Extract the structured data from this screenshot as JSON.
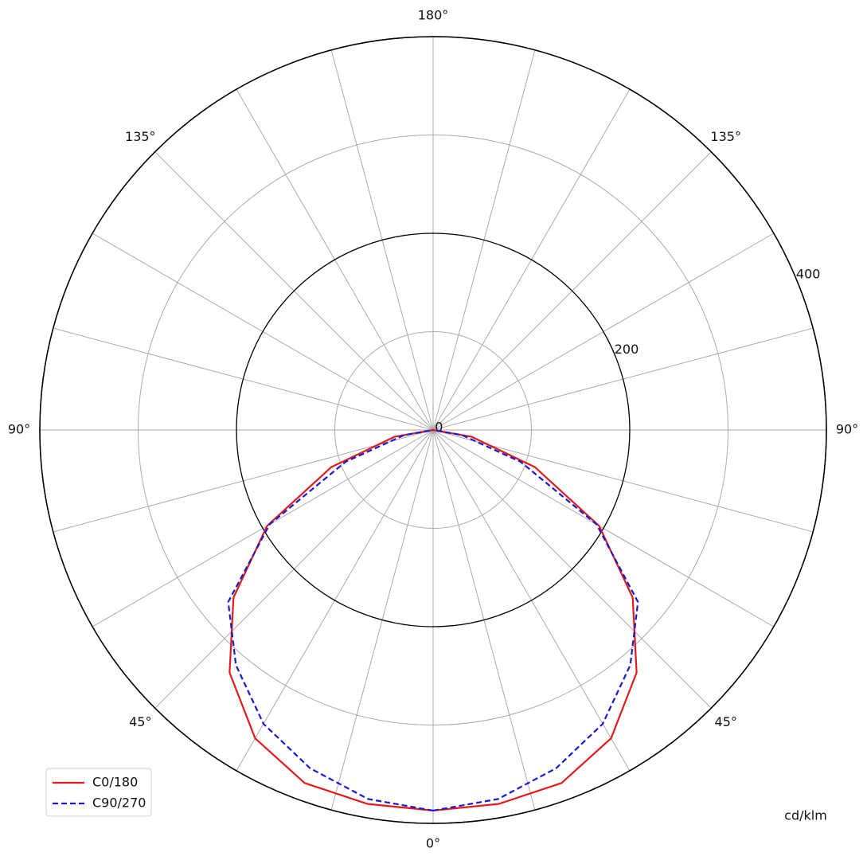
{
  "chart_data": {
    "type": "polar",
    "x": [
      0,
      10,
      20,
      30,
      40,
      50,
      60,
      70,
      80,
      90
    ],
    "series": [
      {
        "name": "C0/180",
        "color": "#e31a1c",
        "dash": "solid",
        "values": [
          387,
          386,
          382,
          362,
          322,
          265,
          195,
          110,
          40,
          0
        ]
      },
      {
        "name": "C90/270",
        "color": "#1a1acc",
        "dash": "dashed",
        "values": [
          387,
          381,
          366,
          345,
          312,
          272,
          192,
          95,
          30,
          0
        ]
      }
    ],
    "rlim": [
      0,
      400
    ],
    "rticks": [
      0,
      200,
      400
    ],
    "angle_ticks": [
      {
        "value": 0,
        "label": "0°"
      },
      {
        "value": 45,
        "label": "45°"
      },
      {
        "value": 90,
        "label": "90°"
      },
      {
        "value": 135,
        "label": "135°"
      },
      {
        "value": 180,
        "label": "180°"
      }
    ],
    "unit_label": "cd/klm",
    "legend": "lower left"
  }
}
